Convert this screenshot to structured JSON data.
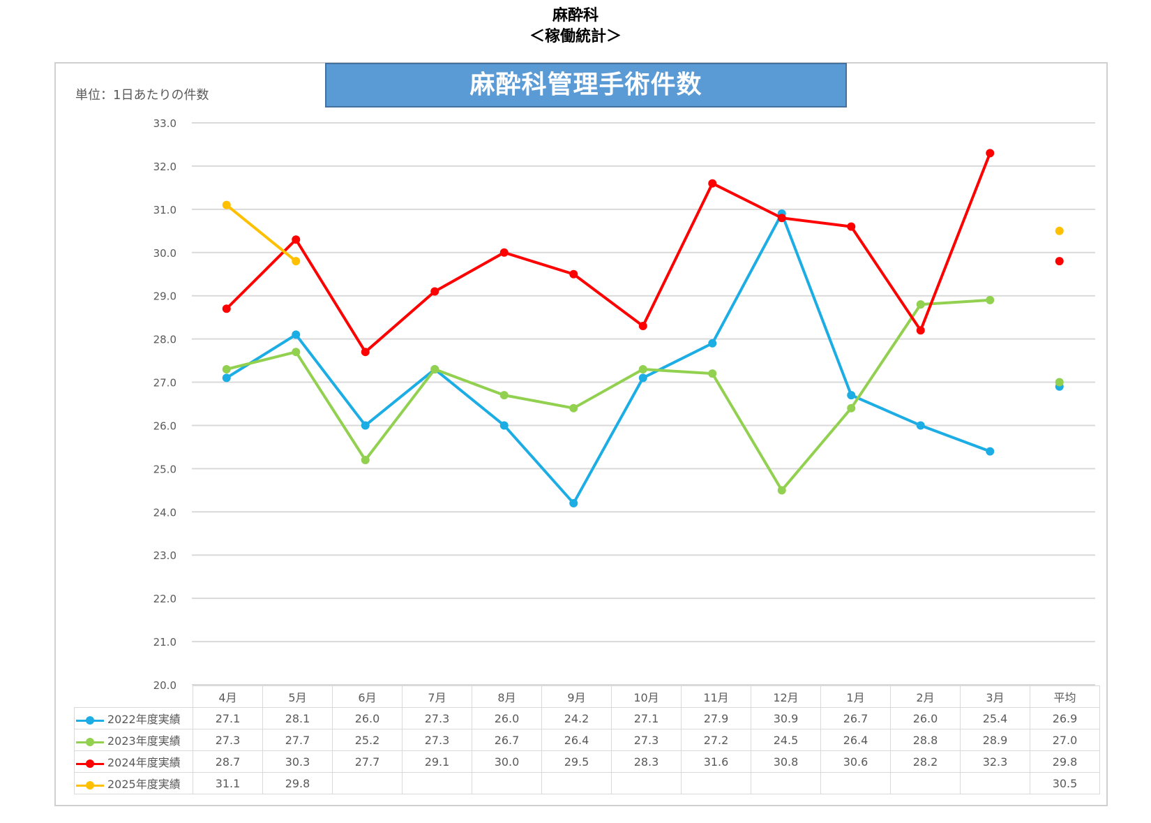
{
  "page": {
    "title_line1": "麻酔科",
    "title_line2": "＜稼働統計＞"
  },
  "chart_data": {
    "type": "line",
    "title": "麻酔科管理手術件数",
    "unit_label": "単位：1日あたりの件数",
    "categories": [
      "4月",
      "5月",
      "6月",
      "7月",
      "8月",
      "9月",
      "10月",
      "11月",
      "12月",
      "1月",
      "2月",
      "3月"
    ],
    "average_label": "平均",
    "ylim": [
      20.0,
      33.0
    ],
    "yticks": [
      "33.0",
      "32.0",
      "31.0",
      "30.0",
      "29.0",
      "28.0",
      "27.0",
      "26.0",
      "25.0",
      "24.0",
      "23.0",
      "22.0",
      "21.0",
      "20.0"
    ],
    "grid": true,
    "series": [
      {
        "name": "2022年度実績",
        "color": "#1cade4",
        "values": [
          27.1,
          28.1,
          26.0,
          27.3,
          26.0,
          24.2,
          27.1,
          27.9,
          30.9,
          26.7,
          26.0,
          25.4
        ],
        "labels": [
          "27.1",
          "28.1",
          "26.0",
          "27.3",
          "26.0",
          "24.2",
          "27.1",
          "27.9",
          "30.9",
          "26.7",
          "26.0",
          "25.4"
        ],
        "average": 26.9,
        "average_label": "26.9"
      },
      {
        "name": "2023年度実績",
        "color": "#92d050",
        "values": [
          27.3,
          27.7,
          25.2,
          27.3,
          26.7,
          26.4,
          27.3,
          27.2,
          24.5,
          26.4,
          28.8,
          28.9
        ],
        "labels": [
          "27.3",
          "27.7",
          "25.2",
          "27.3",
          "26.7",
          "26.4",
          "27.3",
          "27.2",
          "24.5",
          "26.4",
          "28.8",
          "28.9"
        ],
        "average": 27.0,
        "average_label": "27.0"
      },
      {
        "name": "2024年度実績",
        "color": "#ff0000",
        "values": [
          28.7,
          30.3,
          27.7,
          29.1,
          30.0,
          29.5,
          28.3,
          31.6,
          30.8,
          30.6,
          28.2,
          32.3
        ],
        "labels": [
          "28.7",
          "30.3",
          "27.7",
          "29.1",
          "30.0",
          "29.5",
          "28.3",
          "31.6",
          "30.8",
          "30.6",
          "28.2",
          "32.3"
        ],
        "average": 29.8,
        "average_label": "29.8"
      },
      {
        "name": "2025年度実績",
        "color": "#ffc000",
        "values": [
          31.1,
          29.8,
          null,
          null,
          null,
          null,
          null,
          null,
          null,
          null,
          null,
          null
        ],
        "labels": [
          "31.1",
          "29.8",
          "",
          "",
          "",
          "",
          "",
          "",
          "",
          "",
          "",
          ""
        ],
        "average": 30.5,
        "average_label": "30.5"
      }
    ]
  }
}
